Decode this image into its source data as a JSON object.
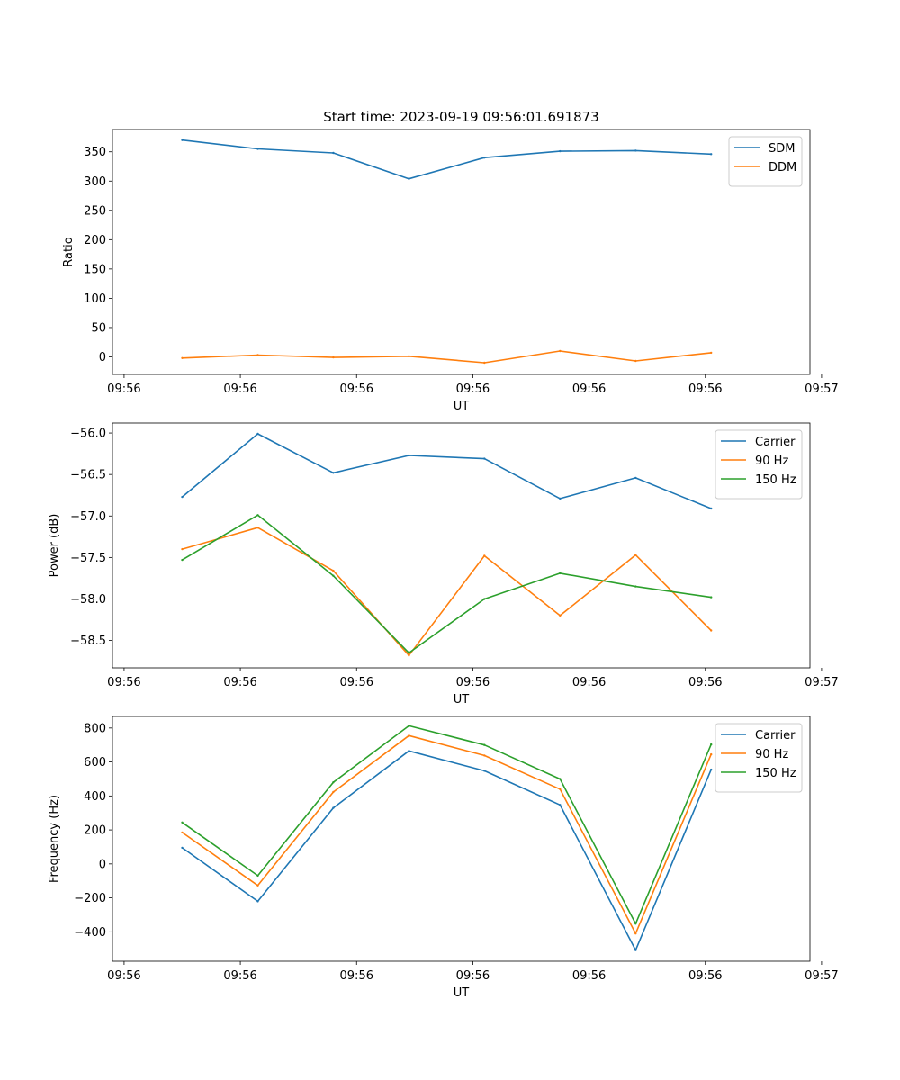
{
  "chart_data": [
    {
      "type": "line",
      "title": "Start time: 2023-09-19 09:56:01.691873",
      "xlabel": "UT",
      "ylabel": "Ratio",
      "x": [
        0.5,
        1.15,
        1.8,
        2.45,
        3.1,
        3.75,
        4.4,
        5.05
      ],
      "xlim": [
        -0.1,
        5.9
      ],
      "xticks": [
        0,
        1,
        2,
        3,
        4,
        5,
        6
      ],
      "xtick_labels": [
        "09:56",
        "09:56",
        "09:56",
        "09:56",
        "09:56",
        "09:56",
        "09:57"
      ],
      "ylim": [
        -30,
        388
      ],
      "yticks": [
        0,
        50,
        100,
        150,
        200,
        250,
        300,
        350
      ],
      "ytick_labels": [
        "0",
        "50",
        "100",
        "150",
        "200",
        "250",
        "300",
        "350"
      ],
      "legend_position": "top-right",
      "series": [
        {
          "name": "SDM",
          "color": "#1f77b4",
          "values": [
            370,
            355,
            348,
            304,
            340,
            351,
            352,
            346
          ]
        },
        {
          "name": "DDM",
          "color": "#ff7f0e",
          "values": [
            -2,
            3,
            -1,
            1,
            -10,
            10,
            -7,
            7
          ]
        }
      ]
    },
    {
      "type": "line",
      "title": "",
      "xlabel": "UT",
      "ylabel": "Power (dB)",
      "x": [
        0.5,
        1.15,
        1.8,
        2.45,
        3.1,
        3.75,
        4.4,
        5.05
      ],
      "xlim": [
        -0.1,
        5.9
      ],
      "xticks": [
        0,
        1,
        2,
        3,
        4,
        5,
        6
      ],
      "xtick_labels": [
        "09:56",
        "09:56",
        "09:56",
        "09:56",
        "09:56",
        "09:56",
        "09:57"
      ],
      "ylim": [
        -58.83,
        -55.88
      ],
      "yticks": [
        -58.5,
        -58.0,
        -57.5,
        -57.0,
        -56.5,
        -56.0
      ],
      "ytick_labels": [
        "−58.5",
        "−58.0",
        "−57.5",
        "−57.0",
        "−56.5",
        "−56.0"
      ],
      "legend_position": "top-right",
      "series": [
        {
          "name": "Carrier",
          "color": "#1f77b4",
          "values": [
            -56.77,
            -56.01,
            -56.48,
            -56.27,
            -56.31,
            -56.79,
            -56.54,
            -56.91
          ]
        },
        {
          "name": "90 Hz",
          "color": "#ff7f0e",
          "values": [
            -57.4,
            -57.14,
            -57.66,
            -58.68,
            -57.48,
            -58.2,
            -57.47,
            -58.38
          ]
        },
        {
          "name": "150 Hz",
          "color": "#2ca02c",
          "values": [
            -57.53,
            -56.99,
            -57.72,
            -58.65,
            -58.0,
            -57.69,
            -57.85,
            -57.98
          ]
        }
      ]
    },
    {
      "type": "line",
      "title": "",
      "xlabel": "UT",
      "ylabel": "Frequency (Hz)",
      "x": [
        0.5,
        1.15,
        1.8,
        2.45,
        3.1,
        3.75,
        4.4,
        5.05
      ],
      "xlim": [
        -0.1,
        5.9
      ],
      "xticks": [
        0,
        1,
        2,
        3,
        4,
        5,
        6
      ],
      "xtick_labels": [
        "09:56",
        "09:56",
        "09:56",
        "09:56",
        "09:56",
        "09:56",
        "09:57"
      ],
      "ylim": [
        -573,
        868
      ],
      "yticks": [
        -400,
        -200,
        0,
        200,
        400,
        600,
        800
      ],
      "ytick_labels": [
        "−400",
        "−200",
        "0",
        "200",
        "400",
        "600",
        "800"
      ],
      "legend_position": "top-right",
      "series": [
        {
          "name": "Carrier",
          "color": "#1f77b4",
          "values": [
            95,
            -220,
            330,
            665,
            548,
            347,
            -508,
            555
          ]
        },
        {
          "name": "90 Hz",
          "color": "#ff7f0e",
          "values": [
            185,
            -127,
            423,
            755,
            638,
            440,
            -410,
            645
          ]
        },
        {
          "name": "150 Hz",
          "color": "#2ca02c",
          "values": [
            244,
            -69,
            480,
            813,
            700,
            500,
            -352,
            703
          ]
        }
      ]
    }
  ]
}
